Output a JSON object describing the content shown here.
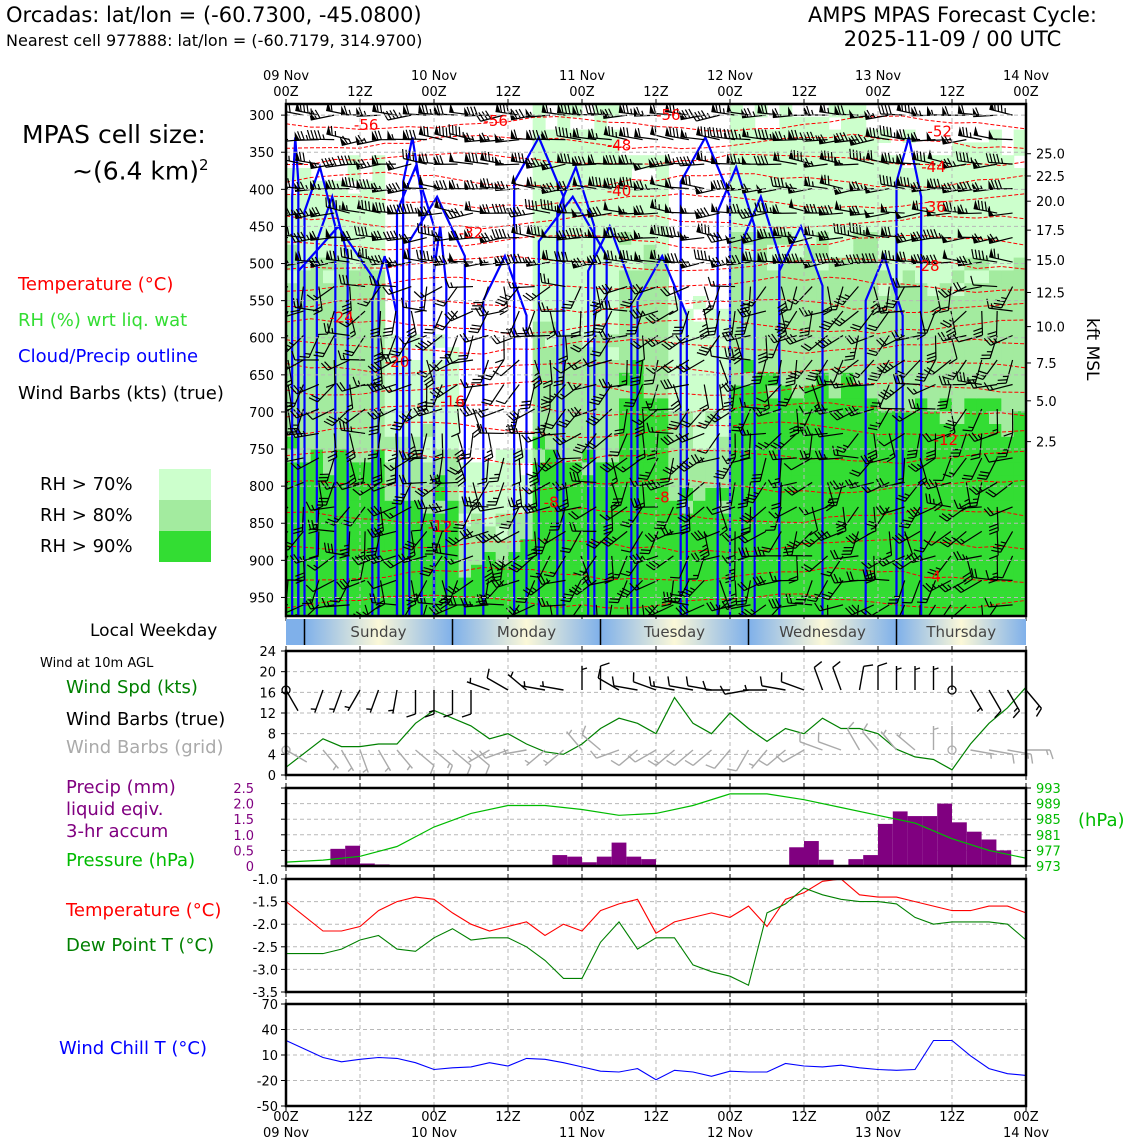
{
  "header": {
    "location_line": "Orcadas: lat/lon = (-60.7300, -45.0800)",
    "cell_line": "Nearest cell 977888: lat/lon = (-60.7179, 314.9700)",
    "cycle_line1": "AMPS MPAS Forecast Cycle:",
    "cycle_line2": "2025-11-09 / 00 UTC",
    "cell_size_line1": "MPAS cell size:",
    "cell_size_line2": "~(6.4 km)",
    "cell_size_sup": "2"
  },
  "time_axis": {
    "top_ticks": [
      {
        "l1": "09 Nov",
        "l2": "00Z"
      },
      {
        "l1": "",
        "l2": "12Z"
      },
      {
        "l1": "10 Nov",
        "l2": "00Z"
      },
      {
        "l1": "",
        "l2": "12Z"
      },
      {
        "l1": "11 Nov",
        "l2": "00Z"
      },
      {
        "l1": "",
        "l2": "12Z"
      },
      {
        "l1": "12 Nov",
        "l2": "00Z"
      },
      {
        "l1": "",
        "l2": "12Z"
      },
      {
        "l1": "13 Nov",
        "l2": "00Z"
      },
      {
        "l1": "",
        "l2": "12Z"
      },
      {
        "l1": "14 Nov",
        "l2": "00Z"
      }
    ],
    "bottom_ticks": [
      {
        "l1": "00Z",
        "l2": "09 Nov"
      },
      {
        "l1": "12Z",
        "l2": ""
      },
      {
        "l1": "00Z",
        "l2": "10 Nov"
      },
      {
        "l1": "12Z",
        "l2": ""
      },
      {
        "l1": "00Z",
        "l2": "11 Nov"
      },
      {
        "l1": "12Z",
        "l2": ""
      },
      {
        "l1": "00Z",
        "l2": "12 Nov"
      },
      {
        "l1": "12Z",
        "l2": ""
      },
      {
        "l1": "00Z",
        "l2": "13 Nov"
      },
      {
        "l1": "12Z",
        "l2": ""
      },
      {
        "l1": "00Z",
        "l2": "14 Nov"
      }
    ],
    "hours_range": [
      0,
      120
    ]
  },
  "legend_profile": {
    "temperature": "Temperature (°C)",
    "rh": "RH (%) wrt liq. wat",
    "cloud": "Cloud/Precip outline",
    "wind": "Wind Barbs (kts) (true)",
    "rh70": "RH > 70%",
    "rh80": "RH > 80%",
    "rh90": "RH > 90%",
    "kft_label": "kft MSL"
  },
  "weekday": {
    "label": "Local Weekday",
    "days": [
      "Sunday",
      "Monday",
      "Tuesday",
      "Wednesday",
      "Thursday"
    ]
  },
  "legend_wind": {
    "title": "Wind at 10m AGL",
    "spd": "Wind Spd (kts)",
    "barbs_true": "Wind Barbs (true)",
    "barbs_grid": "Wind Barbs (grid)"
  },
  "legend_precip": {
    "l1": "Precip (mm)",
    "l2": "liquid eqiv.",
    "l3": "3-hr accum",
    "pressure": "Pressure (hPa)",
    "hpa": "(hPa)"
  },
  "legend_temp": {
    "temp": "Temperature (°C)",
    "dew": "Dew Point T (°C)"
  },
  "legend_chill": {
    "chill": "Wind Chill T (°C)"
  },
  "colors": {
    "temp": "#ff0000",
    "rh": "#33dd33",
    "cloud": "#0000ff",
    "rh70": "#ccffcc",
    "rh80": "#a3eb9f",
    "rh90": "#33dd33",
    "precip": "#800080",
    "pressure": "#00bb00",
    "dew": "#008000",
    "grid_barb": "#aaaaaa"
  },
  "chart_data": [
    {
      "type": "heatmap",
      "name": "vertical-profile",
      "y_pressure_ticks": [
        300,
        350,
        400,
        450,
        500,
        550,
        600,
        650,
        700,
        750,
        800,
        850,
        900,
        950
      ],
      "y_range_hpa": [
        975,
        285
      ],
      "kft_ticks": [
        {
          "label": "25.0",
          "p": 352
        },
        {
          "label": "22.5",
          "p": 380
        },
        {
          "label": "20.0",
          "p": 411
        },
        {
          "label": "17.5",
          "p": 446
        },
        {
          "label": "15.0",
          "p": 482
        },
        {
          "label": "12.5",
          "p": 522
        },
        {
          "label": "10.0",
          "p": 564
        },
        {
          "label": "7.5",
          "p": 611
        },
        {
          "label": "5.0",
          "p": 661
        },
        {
          "label": "2.5",
          "p": 716
        }
      ],
      "temp_labels": [
        {
          "t": "-56",
          "h": 13,
          "p": 313
        },
        {
          "t": "-56",
          "h": 34,
          "p": 308
        },
        {
          "t": "-56",
          "h": 62,
          "p": 300
        },
        {
          "t": "-52",
          "h": 106,
          "p": 322
        },
        {
          "t": "-48",
          "h": 54,
          "p": 341
        },
        {
          "t": "-44",
          "h": 105,
          "p": 370
        },
        {
          "t": "-40",
          "h": 54,
          "p": 402
        },
        {
          "t": "-36",
          "h": 105,
          "p": 424
        },
        {
          "t": "-32",
          "h": 30,
          "p": 459
        },
        {
          "t": "-28",
          "h": 104,
          "p": 503
        },
        {
          "t": "-24",
          "h": 9,
          "p": 573
        },
        {
          "t": "-20",
          "h": 18,
          "p": 633
        },
        {
          "t": "-16",
          "h": 27,
          "p": 686
        },
        {
          "t": "-12",
          "h": 107,
          "p": 738
        },
        {
          "t": "-8",
          "h": 43,
          "p": 822
        },
        {
          "t": "-8",
          "h": 61,
          "p": 815
        },
        {
          "t": "-12",
          "h": 25,
          "p": 855
        },
        {
          "t": "-4",
          "h": 105,
          "p": 922
        }
      ],
      "cloud_outline_hours": [
        [
          2,
          1
        ],
        [
          3,
          8
        ],
        [
          5,
          10
        ],
        [
          2,
          15
        ],
        [
          14,
          18
        ],
        [
          19,
          22
        ],
        [
          18,
          24
        ],
        [
          20,
          29
        ],
        [
          24,
          26
        ],
        [
          32,
          39
        ],
        [
          37,
          45
        ],
        [
          44,
          50
        ],
        [
          41,
          52
        ],
        [
          49,
          56
        ],
        [
          57,
          65
        ],
        [
          64,
          72
        ],
        [
          70,
          76
        ],
        [
          74,
          80
        ],
        [
          80,
          87
        ],
        [
          94,
          100
        ],
        [
          99,
          103
        ]
      ]
    },
    {
      "type": "line",
      "name": "wind-10m",
      "ylim": [
        0,
        24
      ],
      "yticks": [
        0,
        4,
        8,
        12,
        16,
        20,
        24
      ],
      "x_hours": [
        0,
        6,
        9,
        12,
        15,
        18,
        21,
        24,
        27,
        30,
        33,
        36,
        39,
        42,
        45,
        48,
        51,
        54,
        57,
        60,
        63,
        66,
        69,
        72,
        75,
        78,
        81,
        84,
        87,
        90,
        93,
        96,
        99,
        102,
        105,
        108,
        111,
        114,
        117,
        120
      ],
      "wind_speed_kts": [
        1.5,
        7,
        5.5,
        5.5,
        6,
        6,
        10,
        12.5,
        11,
        9.5,
        7,
        8,
        6,
        4.5,
        4,
        6,
        9,
        11,
        10,
        8,
        15,
        10,
        8,
        12,
        9,
        6.5,
        9,
        8,
        11,
        9,
        9,
        8,
        5,
        3.5,
        3,
        1,
        6,
        10,
        13,
        17
      ],
      "true_barb_dirs_deg": [
        150,
        200,
        200,
        210,
        200,
        190,
        180,
        180,
        180,
        180,
        290,
        300,
        310,
        280,
        280,
        0,
        0,
        300,
        280,
        290,
        280,
        280,
        280,
        270,
        260,
        270,
        280,
        290,
        340,
        340,
        10,
        0,
        0,
        0,
        0,
        0,
        150,
        150,
        150,
        140
      ],
      "grid_barb_dirs_deg": [
        120,
        140,
        150,
        160,
        150,
        140,
        130,
        130,
        130,
        130,
        240,
        250,
        260,
        230,
        230,
        320,
        310,
        250,
        230,
        240,
        230,
        230,
        230,
        220,
        210,
        220,
        230,
        240,
        290,
        290,
        330,
        320,
        320,
        310,
        0,
        0,
        100,
        100,
        100,
        90
      ]
    },
    {
      "type": "bar",
      "name": "precip-pressure",
      "precip_ylim": [
        0,
        2.5
      ],
      "precip_yticks": [
        0,
        0.5,
        1.0,
        1.5,
        2.0,
        2.5
      ],
      "precip_3hr_mm": [
        0,
        0,
        0,
        0.55,
        0.65,
        0.08,
        0.05,
        0,
        0,
        0,
        0,
        0,
        0,
        0,
        0,
        0,
        0,
        0,
        0.35,
        0.3,
        0.12,
        0.3,
        0.75,
        0.3,
        0.22,
        0,
        0,
        0,
        0,
        0,
        0,
        0,
        0,
        0,
        0.6,
        0.8,
        0.2,
        0,
        0.22,
        0.35,
        1.35,
        1.75,
        1.6,
        1.6,
        2.0,
        1.4,
        1.1,
        0.85,
        0.5,
        0
      ],
      "pressure_ylim": [
        973,
        993
      ],
      "pressure_yticks": [
        973,
        977,
        981,
        985,
        989,
        993
      ],
      "pressure_hours": [
        0,
        6,
        12,
        18,
        24,
        30,
        36,
        42,
        48,
        54,
        60,
        66,
        72,
        78,
        84,
        90,
        96,
        102,
        108,
        114,
        120
      ],
      "pressure_hpa": [
        974,
        974.5,
        975.5,
        978,
        983,
        986.5,
        988.5,
        988.5,
        987.5,
        986,
        986.5,
        988.5,
        991.5,
        991.5,
        990,
        988,
        986,
        984,
        980,
        977,
        975
      ]
    },
    {
      "type": "line",
      "name": "temp-dewpoint",
      "ylim": [
        -3.5,
        -1.0
      ],
      "yticks": [
        -1.0,
        -1.5,
        -2.0,
        -2.5,
        -3.0,
        -3.5
      ],
      "x_hours": [
        0,
        6,
        9,
        12,
        15,
        18,
        21,
        24,
        27,
        30,
        33,
        36,
        39,
        42,
        45,
        48,
        51,
        54,
        57,
        60,
        63,
        66,
        69,
        72,
        75,
        78,
        81,
        84,
        87,
        90,
        93,
        96,
        99,
        102,
        105,
        108,
        111,
        114,
        117,
        120
      ],
      "temperature_c": [
        -1.5,
        -2.15,
        -2.15,
        -2.05,
        -1.7,
        -1.5,
        -1.4,
        -1.45,
        -1.75,
        -2.0,
        -2.15,
        -2.05,
        -1.95,
        -2.25,
        -2.0,
        -2.15,
        -1.7,
        -1.55,
        -1.45,
        -2.2,
        -1.95,
        -1.85,
        -1.75,
        -1.85,
        -1.6,
        -2.05,
        -1.45,
        -1.3,
        -1.05,
        -1.0,
        -1.35,
        -1.4,
        -1.4,
        -1.5,
        -1.6,
        -1.7,
        -1.7,
        -1.6,
        -1.6,
        -1.75
      ],
      "dewpoint_c": [
        -2.65,
        -2.65,
        -2.55,
        -2.35,
        -2.25,
        -2.55,
        -2.6,
        -2.3,
        -2.1,
        -2.35,
        -2.3,
        -2.3,
        -2.5,
        -2.8,
        -3.2,
        -3.2,
        -2.4,
        -1.95,
        -2.55,
        -2.3,
        -2.3,
        -2.9,
        -3.05,
        -3.15,
        -3.35,
        -1.75,
        -1.55,
        -1.2,
        -1.35,
        -1.45,
        -1.5,
        -1.5,
        -1.55,
        -1.85,
        -2.0,
        -1.95,
        -1.95,
        -1.95,
        -2.0,
        -2.35
      ]
    },
    {
      "type": "line",
      "name": "wind-chill",
      "ylim": [
        -50,
        70
      ],
      "yticks": [
        70,
        40,
        10,
        -20,
        -50
      ],
      "x_hours": [
        0,
        6,
        9,
        12,
        15,
        18,
        21,
        24,
        27,
        30,
        33,
        36,
        39,
        42,
        45,
        48,
        51,
        54,
        57,
        60,
        63,
        66,
        69,
        72,
        75,
        78,
        81,
        84,
        87,
        90,
        93,
        96,
        99,
        102,
        105,
        108,
        111,
        114,
        117,
        120
      ],
      "wind_chill_c": [
        27,
        7,
        2,
        5,
        7,
        6,
        1,
        -7,
        -5,
        -4,
        1,
        -3,
        6,
        5,
        1,
        -4,
        -9,
        -10,
        -6,
        -19,
        -8,
        -10,
        -15,
        -9,
        -10,
        -10,
        0,
        -3,
        -4,
        -2,
        -5,
        -7,
        -8,
        -7,
        27,
        27,
        9,
        -6,
        -12,
        -14
      ]
    }
  ]
}
